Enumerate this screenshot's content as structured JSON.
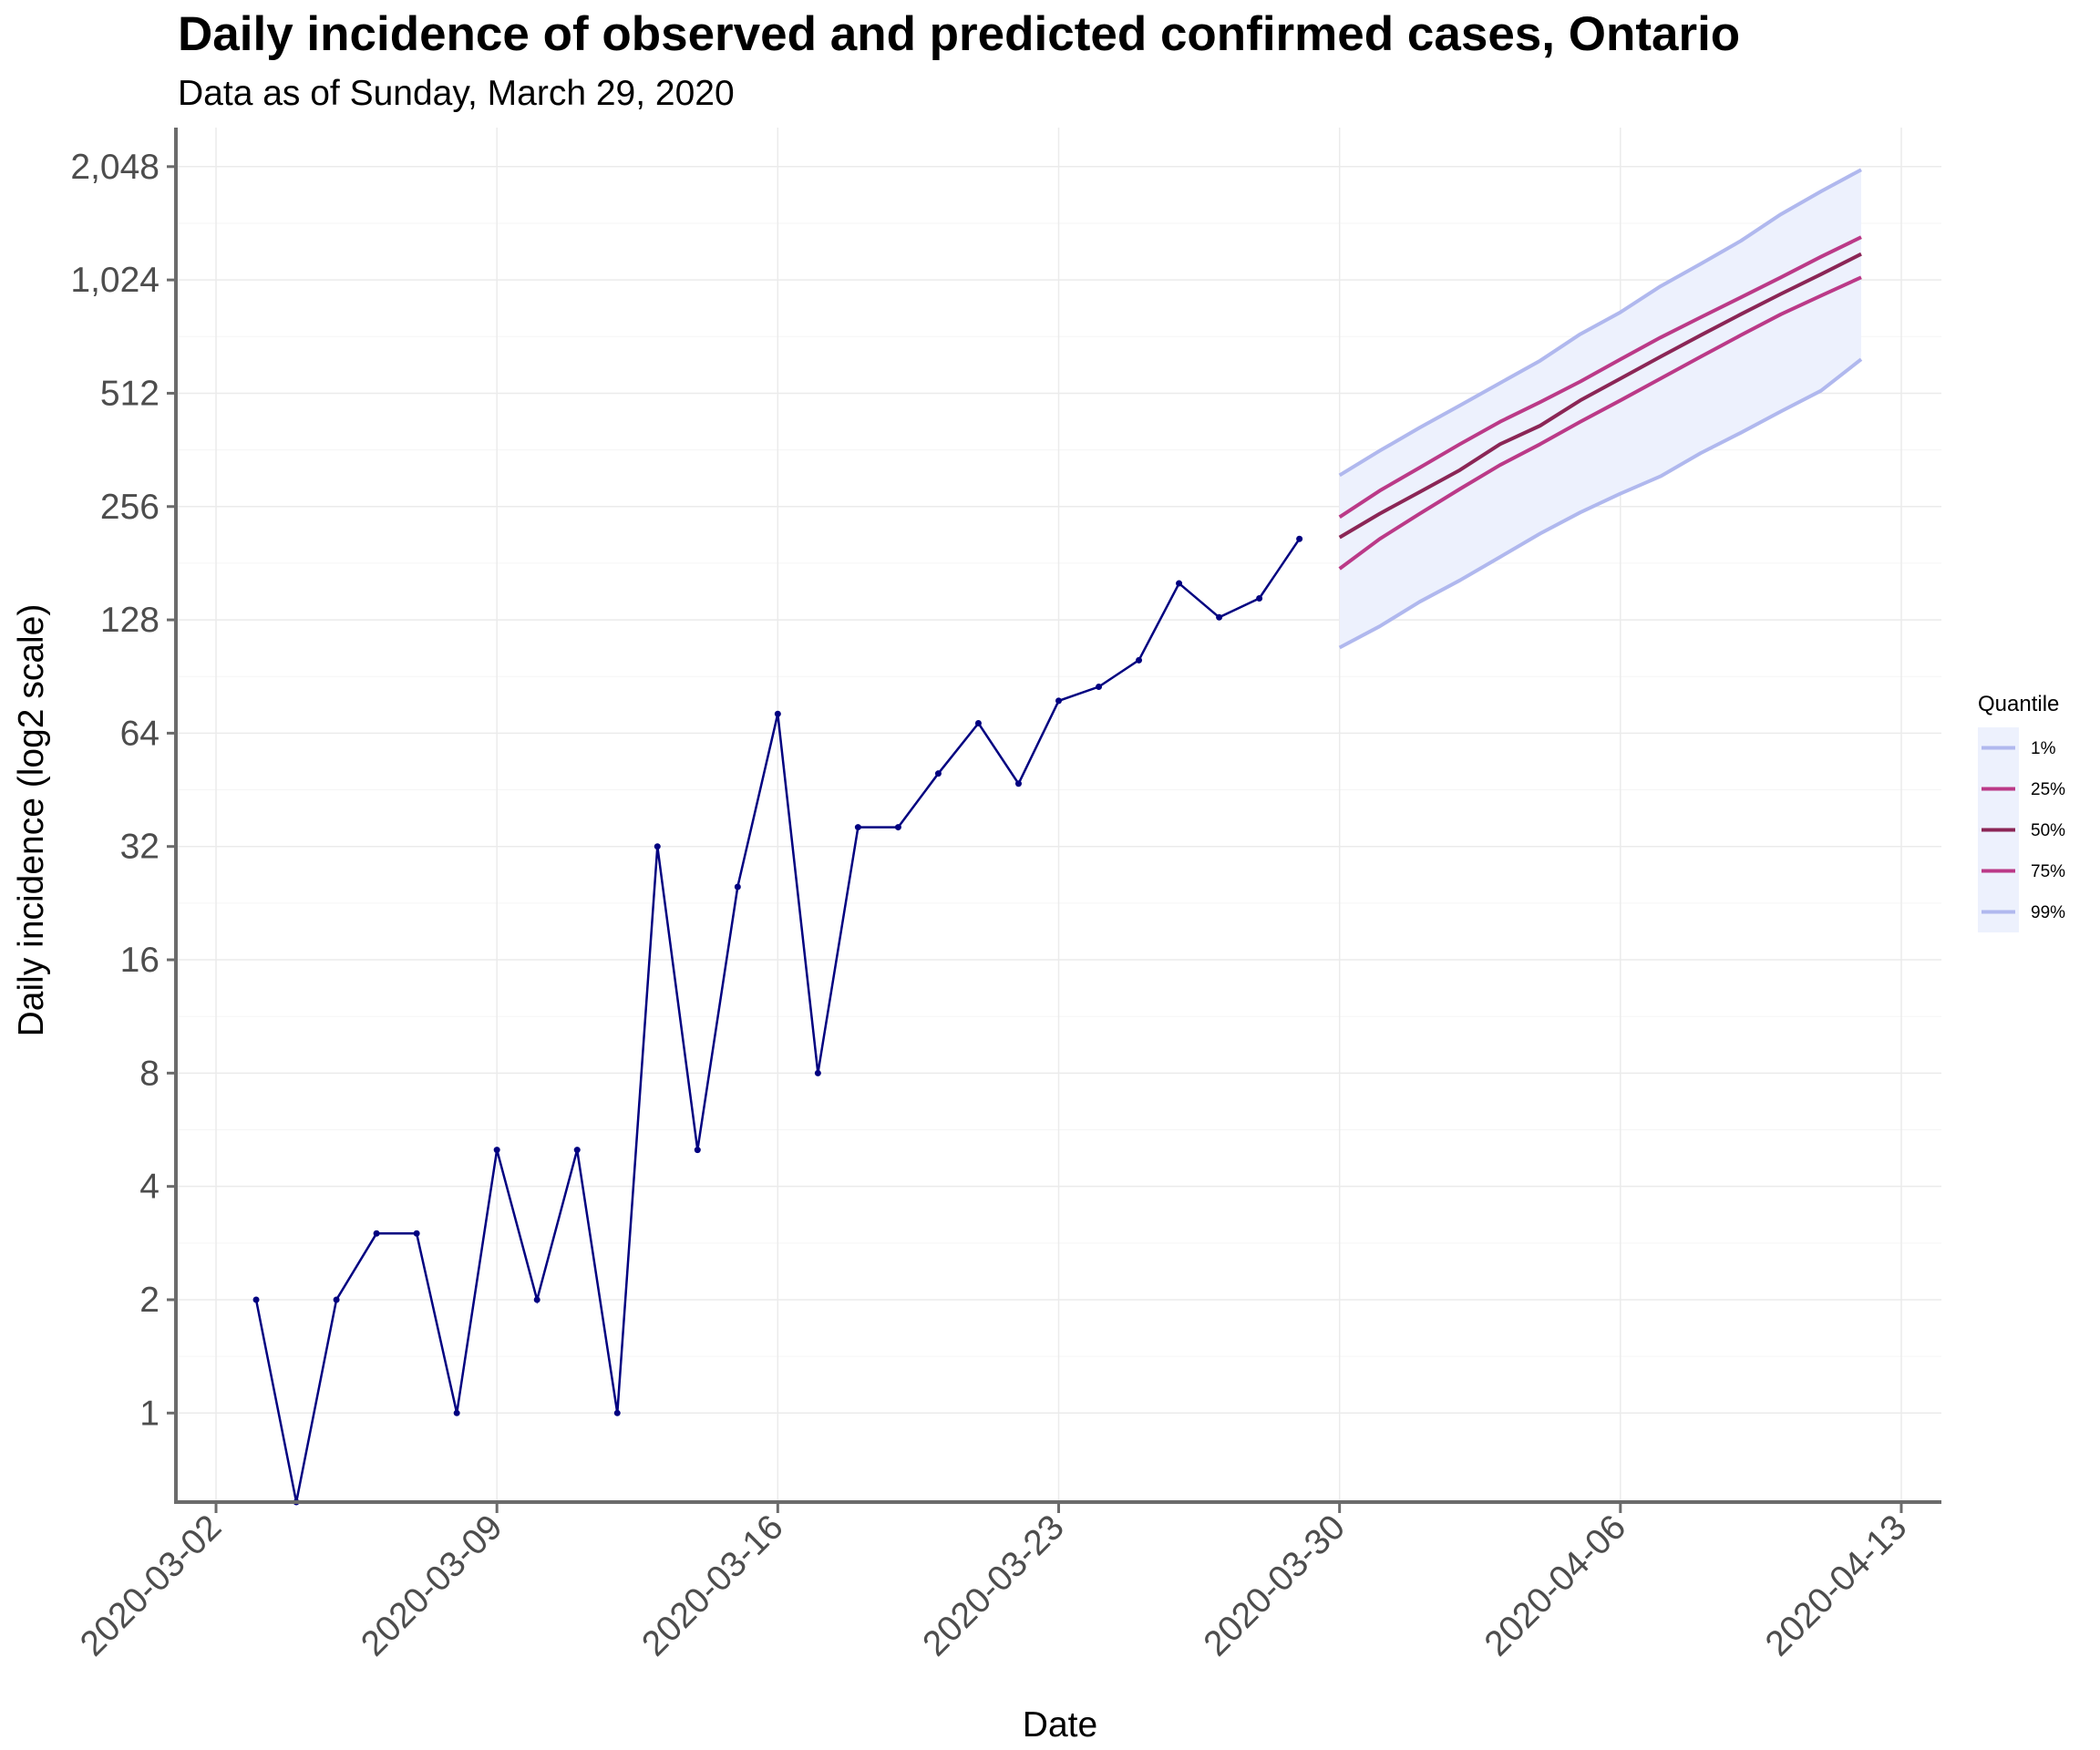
{
  "chart_data": {
    "type": "line",
    "title": "Daily incidence of observed and predicted confirmed cases,  Ontario",
    "subtitle": "Data as of Sunday, March 29, 2020",
    "xlabel": "Date",
    "ylabel": "Daily incidence (log2 scale)",
    "y_scale": "log2",
    "ylim": [
      0.58,
      2600
    ],
    "xlim": [
      "2020-03-01",
      "2020-04-14"
    ],
    "x_ticks": [
      "2020-03-02",
      "2020-03-09",
      "2020-03-16",
      "2020-03-23",
      "2020-03-30",
      "2020-04-06",
      "2020-04-13"
    ],
    "y_ticks": [
      {
        "value": 1,
        "label": "1"
      },
      {
        "value": 2,
        "label": "2"
      },
      {
        "value": 4,
        "label": "4"
      },
      {
        "value": 8,
        "label": "8"
      },
      {
        "value": 16,
        "label": "16"
      },
      {
        "value": 32,
        "label": "32"
      },
      {
        "value": 64,
        "label": "64"
      },
      {
        "value": 128,
        "label": "128"
      },
      {
        "value": 256,
        "label": "256"
      },
      {
        "value": 512,
        "label": "512"
      },
      {
        "value": 1024,
        "label": "1,024"
      },
      {
        "value": 2048,
        "label": "2,048"
      }
    ],
    "grid": true,
    "legend_position": "right",
    "colors": {
      "observed": "#000080",
      "band_fill": "#edf1fd",
      "q1_99": "#b0b8ee",
      "q25_75": "#bb3a88",
      "q50": "#8b2656"
    },
    "observed": {
      "x": [
        "2020-03-03",
        "2020-03-04",
        "2020-03-05",
        "2020-03-06",
        "2020-03-07",
        "2020-03-08",
        "2020-03-09",
        "2020-03-10",
        "2020-03-11",
        "2020-03-12",
        "2020-03-13",
        "2020-03-14",
        "2020-03-15",
        "2020-03-16",
        "2020-03-17",
        "2020-03-18",
        "2020-03-19",
        "2020-03-20",
        "2020-03-21",
        "2020-03-22",
        "2020-03-23",
        "2020-03-24",
        "2020-03-25",
        "2020-03-26",
        "2020-03-27",
        "2020-03-28",
        "2020-03-29"
      ],
      "y": [
        2,
        0.58,
        2,
        3,
        3,
        1,
        5,
        2,
        5,
        1,
        32,
        5,
        25,
        72,
        8,
        36,
        36,
        50,
        68,
        47,
        78,
        85,
        100,
        160,
        130,
        146,
        210
      ]
    },
    "legend": {
      "title": "Quantile",
      "entries": [
        {
          "label": "1%",
          "color": "#b0b8ee"
        },
        {
          "label": "25%",
          "color": "#bb3a88"
        },
        {
          "label": "50%",
          "color": "#8b2656"
        },
        {
          "label": "75%",
          "color": "#bb3a88"
        },
        {
          "label": "99%",
          "color": "#b0b8ee"
        }
      ]
    },
    "series": [
      {
        "name": "1%",
        "x": [
          "2020-03-30",
          "2020-04-01",
          "2020-04-03",
          "2020-04-05",
          "2020-04-07",
          "2020-04-09",
          "2020-04-11",
          "2020-04-13"
        ],
        "y": [
          108,
          145,
          190,
          255,
          330,
          425,
          540,
          640
        ],
        "x_end": "2020-04-12",
        "full": {
          "x": [
            "2020-03-30",
            "2020-03-31",
            "2020-04-01",
            "2020-04-02",
            "2020-04-03",
            "2020-04-04",
            "2020-04-05",
            "2020-04-06",
            "2020-04-07",
            "2020-04-08",
            "2020-04-09",
            "2020-04-10",
            "2020-04-11",
            "2020-04-12"
          ],
          "y": [
            108,
            123,
            143,
            163,
            188,
            217,
            247,
            277,
            308,
            355,
            402,
            458,
            520,
            630
          ]
        }
      },
      {
        "name": "25%",
        "x": [
          "2020-03-30",
          "2020-03-31",
          "2020-04-01",
          "2020-04-02",
          "2020-04-03",
          "2020-04-04",
          "2020-04-05",
          "2020-04-06",
          "2020-04-07",
          "2020-04-08",
          "2020-04-09",
          "2020-04-10",
          "2020-04-11",
          "2020-04-12"
        ],
        "y": [
          175,
          210,
          245,
          285,
          330,
          375,
          430,
          490,
          560,
          640,
          730,
          830,
          930,
          1040
        ]
      },
      {
        "name": "50%",
        "x": [
          "2020-03-30",
          "2020-03-31",
          "2020-04-01",
          "2020-04-02",
          "2020-04-03",
          "2020-04-04",
          "2020-04-05",
          "2020-04-06",
          "2020-04-07",
          "2020-04-08",
          "2020-04-09",
          "2020-04-10",
          "2020-04-11",
          "2020-04-12"
        ],
        "y": [
          212,
          245,
          280,
          320,
          375,
          420,
          490,
          560,
          640,
          730,
          830,
          940,
          1060,
          1200
        ]
      },
      {
        "name": "75%",
        "x": [
          "2020-03-30",
          "2020-03-31",
          "2020-04-01",
          "2020-04-02",
          "2020-04-03",
          "2020-04-04",
          "2020-04-05",
          "2020-04-06",
          "2020-04-07",
          "2020-04-08",
          "2020-04-09",
          "2020-04-10",
          "2020-04-11",
          "2020-04-12"
        ],
        "y": [
          240,
          282,
          325,
          375,
          430,
          485,
          550,
          630,
          720,
          815,
          920,
          1040,
          1180,
          1330
        ]
      },
      {
        "name": "99%",
        "x": [
          "2020-03-30",
          "2020-03-31",
          "2020-04-01",
          "2020-04-02",
          "2020-04-03",
          "2020-04-04",
          "2020-04-05",
          "2020-04-06",
          "2020-04-07",
          "2020-04-08",
          "2020-04-09",
          "2020-04-10",
          "2020-04-11",
          "2020-04-12"
        ],
        "y": [
          310,
          360,
          415,
          475,
          545,
          625,
          735,
          840,
          985,
          1130,
          1300,
          1530,
          1760,
          2010
        ]
      }
    ]
  }
}
